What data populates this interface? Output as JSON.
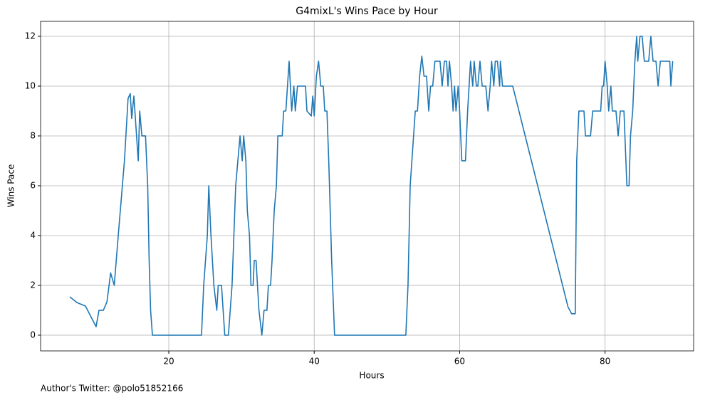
{
  "chart_data": {
    "type": "line",
    "title": "G4mixL's Wins Pace by Hour",
    "xlabel": "Hours",
    "ylabel": "Wins Pace",
    "footer": "Author's Twitter: @polo51852166",
    "color": "#1f77b4",
    "grid": true,
    "xlim": [
      2.37,
      92.18
    ],
    "ylim": [
      -0.63,
      12.6
    ],
    "xticks": [
      20,
      40,
      60,
      80
    ],
    "yticks": [
      0,
      2,
      4,
      6,
      8,
      10,
      12
    ],
    "x": [
      6.39,
      7.37,
      8.54,
      10.0,
      10.4,
      11.0,
      11.5,
      12.0,
      12.5,
      13.05,
      13.9,
      14.4,
      14.7,
      14.9,
      15.2,
      15.8,
      16.0,
      16.3,
      16.8,
      17.1,
      17.3,
      17.5,
      17.75,
      24.5,
      24.8,
      25.3,
      25.5,
      25.8,
      26.2,
      26.6,
      26.8,
      27.25,
      27.7,
      28.2,
      28.7,
      29.2,
      29.8,
      30.1,
      30.3,
      30.6,
      30.8,
      31.1,
      31.3,
      31.6,
      31.75,
      32.0,
      32.4,
      32.8,
      33.1,
      33.5,
      33.7,
      34.0,
      34.2,
      34.5,
      34.8,
      35.0,
      35.6,
      35.8,
      36.1,
      36.55,
      36.9,
      37.2,
      37.4,
      37.7,
      38.8,
      39.0,
      39.6,
      39.8,
      40.0,
      40.3,
      40.6,
      40.9,
      41.25,
      41.45,
      41.75,
      42.0,
      42.4,
      42.8,
      52.6,
      52.9,
      53.2,
      53.9,
      54.2,
      54.5,
      54.8,
      55.1,
      55.45,
      55.75,
      56.0,
      56.3,
      56.6,
      57.3,
      57.6,
      57.9,
      58.2,
      58.4,
      58.6,
      58.9,
      59.1,
      59.3,
      59.5,
      59.8,
      60.0,
      60.3,
      60.8,
      61.1,
      61.5,
      61.8,
      62.0,
      62.3,
      62.5,
      62.8,
      63.1,
      63.6,
      63.9,
      64.2,
      64.4,
      64.7,
      64.9,
      65.2,
      65.5,
      65.6,
      65.9,
      67.3,
      74.9,
      75.4,
      75.9,
      76.1,
      76.4,
      77.1,
      77.3,
      78.0,
      78.3,
      79.4,
      79.6,
      79.8,
      80.0,
      80.3,
      80.5,
      80.8,
      81.0,
      81.5,
      81.8,
      82.1,
      82.6,
      83.0,
      83.3,
      83.5,
      83.8,
      84.1,
      84.35,
      84.5,
      84.8,
      85.1,
      85.4,
      86.0,
      86.3,
      86.6,
      87.0,
      87.3,
      87.6,
      88.9,
      89.05,
      89.3
    ],
    "values": [
      1.54,
      1.31,
      1.17,
      0.34,
      1.0,
      1.0,
      1.34,
      2.5,
      2.0,
      4.0,
      7.0,
      9.5,
      9.7,
      8.7,
      9.6,
      7.0,
      9.0,
      8.0,
      8.0,
      6.0,
      3.0,
      1.0,
      0,
      0,
      2.0,
      4.0,
      6.0,
      4.0,
      2.0,
      1.0,
      2.0,
      2.0,
      0,
      0,
      2.0,
      6.0,
      8.0,
      7.0,
      8.0,
      7.0,
      5.0,
      4.0,
      2.0,
      2.0,
      3.0,
      3.0,
      1.0,
      0,
      1.0,
      1.0,
      2.0,
      2.0,
      3.0,
      5.0,
      6.0,
      8.0,
      8.0,
      9.0,
      9.0,
      11.0,
      9.0,
      10.0,
      9.0,
      10.0,
      10.0,
      9.0,
      8.8,
      9.6,
      8.8,
      10.4,
      11.0,
      10.0,
      10.0,
      9.0,
      9.0,
      7.0,
      3.0,
      0,
      0,
      2.0,
      6.0,
      9.0,
      9.0,
      10.4,
      11.2,
      10.4,
      10.4,
      9.0,
      10.0,
      10.0,
      11.0,
      11.0,
      10.0,
      11.0,
      11.0,
      10.0,
      11.0,
      10.0,
      9.0,
      10.0,
      9.0,
      10.0,
      9.0,
      7.0,
      7.0,
      9.0,
      11.0,
      10.0,
      11.0,
      10.0,
      10.0,
      11.0,
      10.0,
      10.0,
      9.0,
      10.0,
      11.0,
      10.0,
      11.0,
      11.0,
      10.0,
      11.0,
      10.0,
      10.0,
      1.14,
      0.86,
      0.86,
      7.0,
      9.0,
      9.0,
      8.0,
      8.0,
      9.0,
      9.0,
      10.0,
      10.0,
      11.0,
      10.0,
      9.0,
      10.0,
      9.0,
      9.0,
      8.0,
      9.0,
      9.0,
      6.0,
      6.0,
      8.0,
      9.0,
      11.0,
      12.0,
      11.0,
      12.0,
      12.0,
      11.0,
      11.0,
      12.0,
      11.0,
      11.0,
      10.0,
      11.0,
      11.0,
      10.0,
      11.0
    ]
  }
}
